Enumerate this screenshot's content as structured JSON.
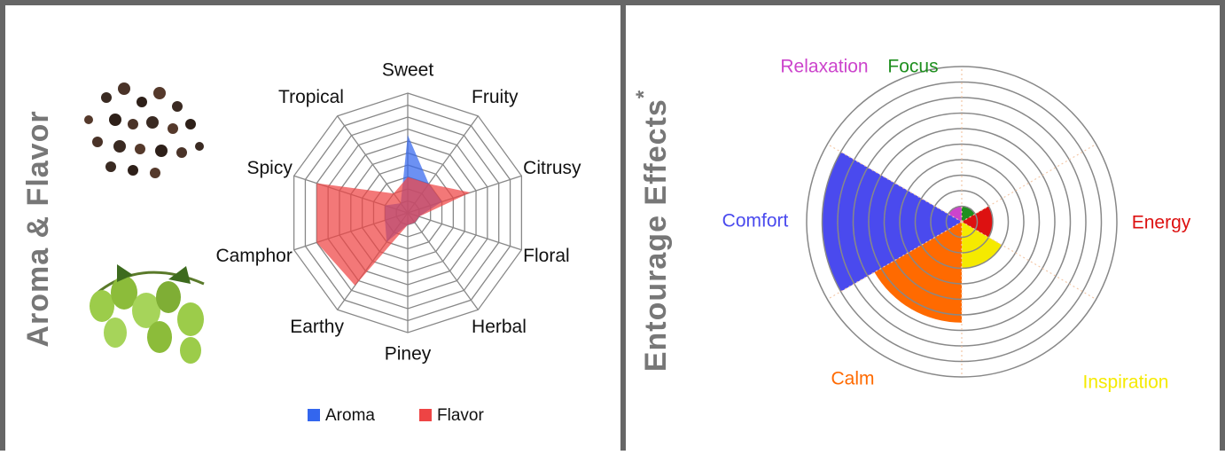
{
  "chart_data": [
    {
      "type": "radar",
      "title": "Aroma & Flavor",
      "categories": [
        "Sweet",
        "Fruity",
        "Citrusy",
        "Floral",
        "Herbal",
        "Piney",
        "Earthy",
        "Camphor",
        "Spicy",
        "Tropical"
      ],
      "series": [
        {
          "name": "Aroma",
          "color": "#3366ee",
          "values": [
            6.5,
            3,
            3,
            1,
            1,
            1,
            3,
            2,
            2,
            1
          ]
        },
        {
          "name": "Flavor",
          "color": "#ee4444",
          "values": [
            3,
            3,
            5.5,
            1,
            1,
            1,
            7.5,
            8,
            8,
            2
          ]
        }
      ],
      "rlim": [
        0,
        10
      ],
      "rticks": [
        1,
        2,
        3,
        4,
        5,
        6,
        7,
        8,
        9,
        10
      ],
      "legend": "bottom"
    },
    {
      "type": "polar_area",
      "title": "Entourage Effects",
      "title_marker": "*",
      "categories": [
        "Focus",
        "Energy",
        "Inspiration",
        "Calm",
        "Comfort",
        "Relaxation"
      ],
      "values": [
        1,
        2,
        3,
        6.5,
        9,
        1
      ],
      "colors": [
        "#1f8f1f",
        "#dd1111",
        "#f5ea00",
        "#ff6a00",
        "#4a4aee",
        "#cc44cc"
      ],
      "rlim": [
        0,
        10
      ],
      "rticks": [
        1,
        2,
        3,
        4,
        5,
        6,
        7,
        8,
        9,
        10
      ]
    }
  ]
}
